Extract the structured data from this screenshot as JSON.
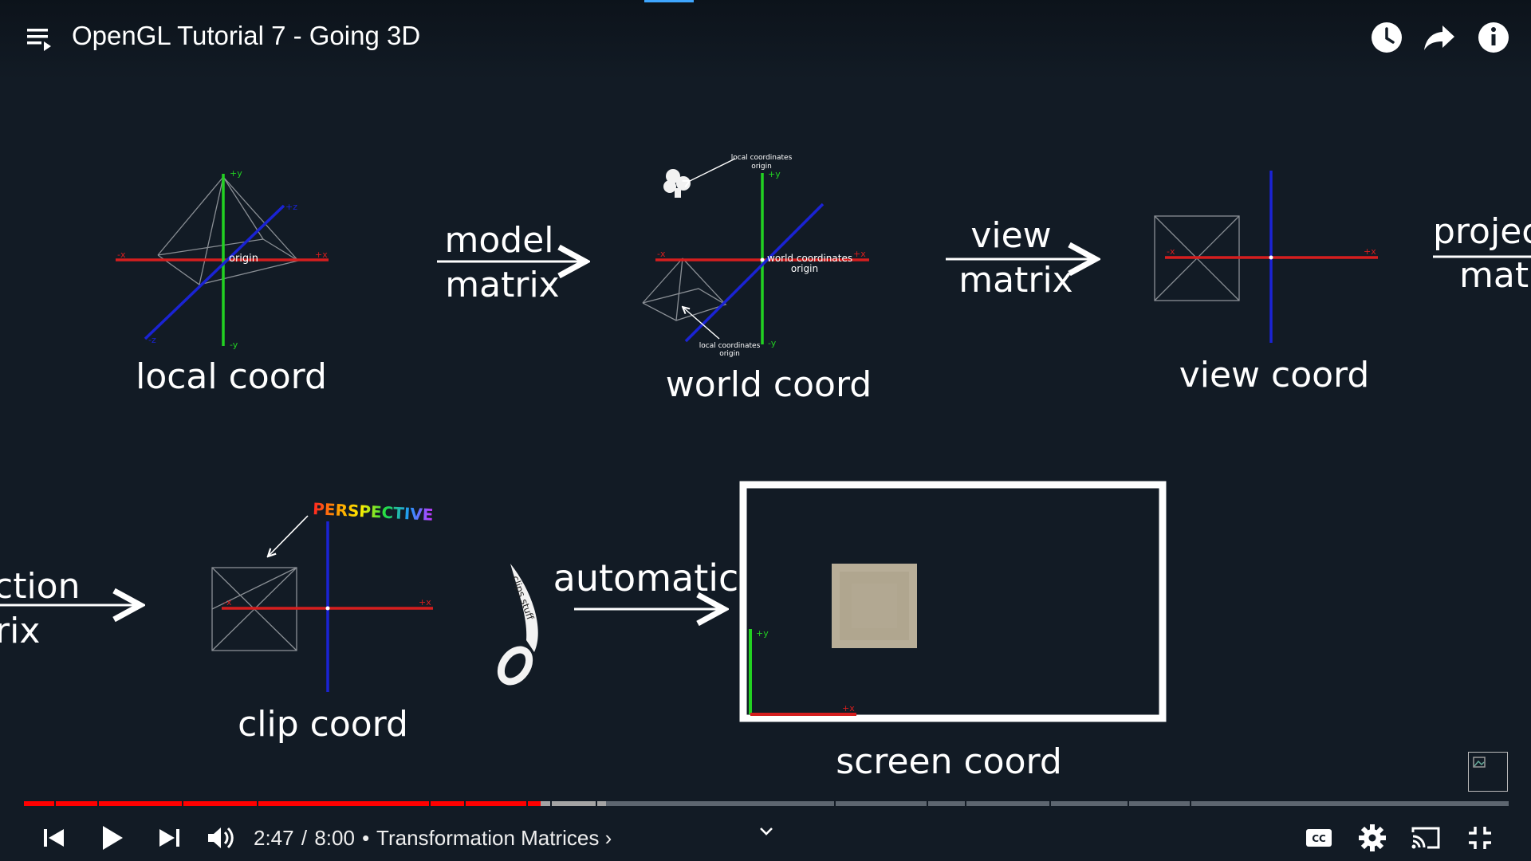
{
  "window": {
    "video_title": "OpenGL Tutorial 7 - Going 3D"
  },
  "top_actions": {
    "icons": [
      "watch-later-icon",
      "share-icon",
      "info-icon"
    ]
  },
  "slide": {
    "local": {
      "label": "local coord",
      "origin_label": "origin",
      "axes": {
        "py": "+y",
        "ny": "-y",
        "px": "+x",
        "nx": "-x",
        "pz": "+z",
        "nz": "-z"
      }
    },
    "model_arrow": {
      "line1": "model",
      "line2": "matrix"
    },
    "world": {
      "label": "world coord",
      "note_top_line1": "local coordinates",
      "note_top_line2": "origin",
      "world_origin_line1": "world coordinates",
      "world_origin_line2": "origin",
      "note_bottom_line1": "local coordinates",
      "note_bottom_line2": "origin",
      "axes": {
        "py": "+y",
        "ny": "-y",
        "px": "+x",
        "nx": "-x"
      }
    },
    "view_arrow": {
      "line1": "view",
      "line2": "matrix"
    },
    "view": {
      "label": "view coord",
      "axes": {
        "px": "+x",
        "nx": "-x"
      }
    },
    "projection_arrow_partial": {
      "line1_a": "projec",
      "line2_a": "mat",
      "line1_b": "ction",
      "line2_b": "rix"
    },
    "clip": {
      "label": "clip coord",
      "badge": "PERSPECTIVE",
      "axes": {
        "px": "+x",
        "nx": "-x"
      }
    },
    "scissors_text": "clips stuff",
    "automatic_arrow": {
      "label": "automatic"
    },
    "screen": {
      "label": "screen coord",
      "axes": {
        "py": "+y",
        "px": "+x"
      }
    }
  },
  "colors": {
    "background": "#131c26",
    "x_axis": "#d51e1e",
    "y_axis": "#22d122",
    "z_axis": "#1a23d4",
    "progress_played": "#ff0000",
    "progress_buffered": "#a4a4a4",
    "progress_rest": "#5d6670"
  },
  "player": {
    "current_time": "2:47",
    "separator": "/",
    "duration": "8:00",
    "bullet": "•",
    "chapter": "Transformation Matrices",
    "chapter_arrow": "›",
    "progress_fraction_played": 0.348,
    "progress_fraction_buffered": 0.392,
    "controls": [
      "previous-icon",
      "play-icon",
      "next-icon",
      "volume-icon",
      "chevron-down-icon",
      "captions-icon",
      "settings-icon",
      "cast-icon",
      "exit-fullscreen-icon"
    ]
  }
}
